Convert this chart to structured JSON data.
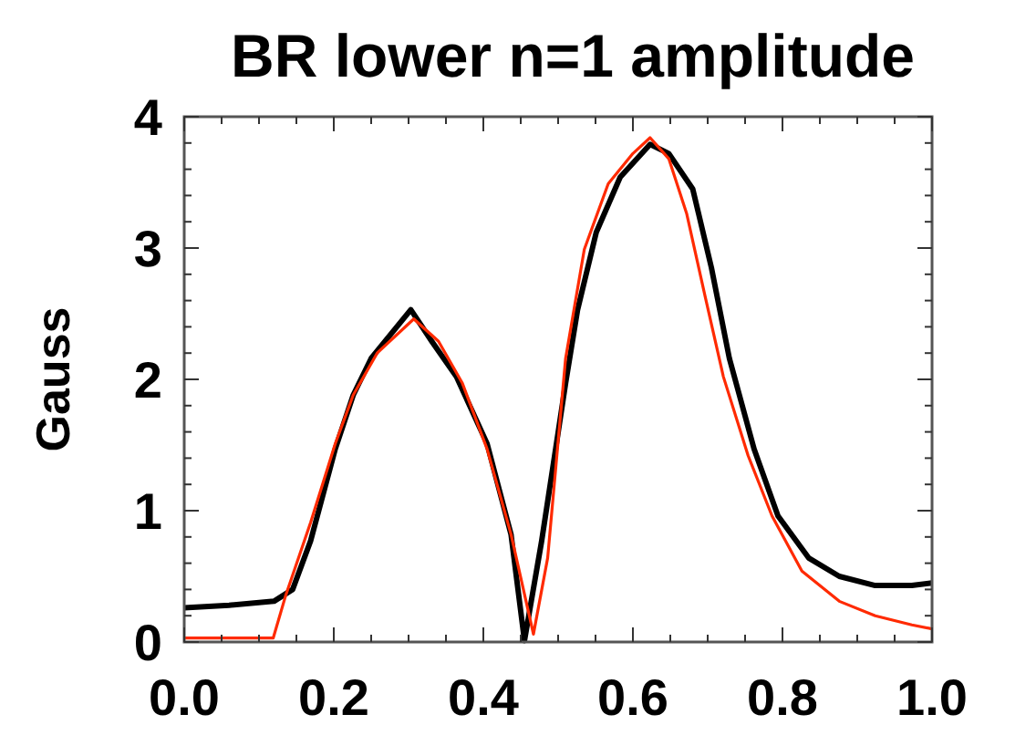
{
  "chart_data": {
    "type": "line",
    "title": "BR lower n=1 amplitude",
    "ylabel": "Gauss",
    "xlim": [
      0,
      1
    ],
    "ylim": [
      0,
      4
    ],
    "xticks": [
      {
        "value": 0,
        "label": "0.0"
      },
      {
        "value": 0.05,
        "label": null
      },
      {
        "value": 0.1,
        "label": null
      },
      {
        "value": 0.15,
        "label": null
      },
      {
        "value": 0.2,
        "label": "0.2"
      },
      {
        "value": 0.25,
        "label": null
      },
      {
        "value": 0.3,
        "label": null
      },
      {
        "value": 0.35,
        "label": null
      },
      {
        "value": 0.4,
        "label": "0.4"
      },
      {
        "value": 0.45,
        "label": null
      },
      {
        "value": 0.5,
        "label": null
      },
      {
        "value": 0.55,
        "label": null
      },
      {
        "value": 0.6,
        "label": "0.6"
      },
      {
        "value": 0.65,
        "label": null
      },
      {
        "value": 0.7,
        "label": null
      },
      {
        "value": 0.75,
        "label": null
      },
      {
        "value": 0.8,
        "label": "0.8"
      },
      {
        "value": 0.85,
        "label": null
      },
      {
        "value": 0.9,
        "label": null
      },
      {
        "value": 0.95,
        "label": null
      },
      {
        "value": 1,
        "label": "1.0"
      }
    ],
    "yticks": [
      0,
      {
        "value": 0.2,
        "label": null
      },
      {
        "value": 0.4,
        "label": null
      },
      {
        "value": 0.6,
        "label": null
      },
      {
        "value": 0.8,
        "label": null
      },
      1,
      {
        "value": 1.2,
        "label": null
      },
      {
        "value": 1.4,
        "label": null
      },
      {
        "value": 1.6,
        "label": null
      },
      {
        "value": 1.8,
        "label": null
      },
      2,
      {
        "value": 2.2,
        "label": null
      },
      {
        "value": 2.4,
        "label": null
      },
      {
        "value": 2.6,
        "label": null
      },
      {
        "value": 2.8,
        "label": null
      },
      3,
      {
        "value": 3.2,
        "label": null
      },
      {
        "value": 3.4,
        "label": null
      },
      {
        "value": 3.6,
        "label": null
      },
      {
        "value": 3.8,
        "label": null
      },
      4
    ],
    "grid": false,
    "marker": "none",
    "line_style": "solid",
    "series": [
      {
        "color": "#000000",
        "x": [
          0,
          0.06,
          0.12,
          0.145,
          0.169,
          0.202,
          0.226,
          0.25,
          0.303,
          0.331,
          0.364,
          0.405,
          0.437,
          0.455,
          0.478,
          0.51,
          0.526,
          0.551,
          0.583,
          0.623,
          0.648,
          0.68,
          0.705,
          0.729,
          0.762,
          0.794,
          0.835,
          0.876,
          0.924,
          0.973,
          1
        ],
        "values": [
          0.26,
          0.28,
          0.31,
          0.4,
          0.77,
          1.47,
          1.88,
          2.16,
          2.53,
          2.29,
          2.02,
          1.51,
          0.82,
          0.01,
          0.77,
          1.97,
          2.53,
          3.12,
          3.54,
          3.79,
          3.72,
          3.45,
          2.85,
          2.16,
          1.47,
          0.96,
          0.64,
          0.5,
          0.43,
          0.43,
          0.45
        ]
      },
      {
        "color": "#ff2a00",
        "x": [
          0,
          0.06,
          0.119,
          0.136,
          0.169,
          0.202,
          0.226,
          0.258,
          0.307,
          0.34,
          0.372,
          0.405,
          0.437,
          0.467,
          0.486,
          0.51,
          0.535,
          0.567,
          0.6,
          0.623,
          0.648,
          0.672,
          0.697,
          0.721,
          0.754,
          0.786,
          0.826,
          0.876,
          0.924,
          0.973,
          1
        ],
        "values": [
          0.03,
          0.03,
          0.03,
          0.36,
          0.91,
          1.51,
          1.88,
          2.2,
          2.46,
          2.29,
          1.97,
          1.47,
          0.82,
          0.06,
          0.64,
          2.16,
          2.99,
          3.49,
          3.72,
          3.84,
          3.68,
          3.26,
          2.62,
          2.02,
          1.42,
          0.96,
          0.54,
          0.31,
          0.2,
          0.13,
          0.1
        ]
      }
    ]
  }
}
